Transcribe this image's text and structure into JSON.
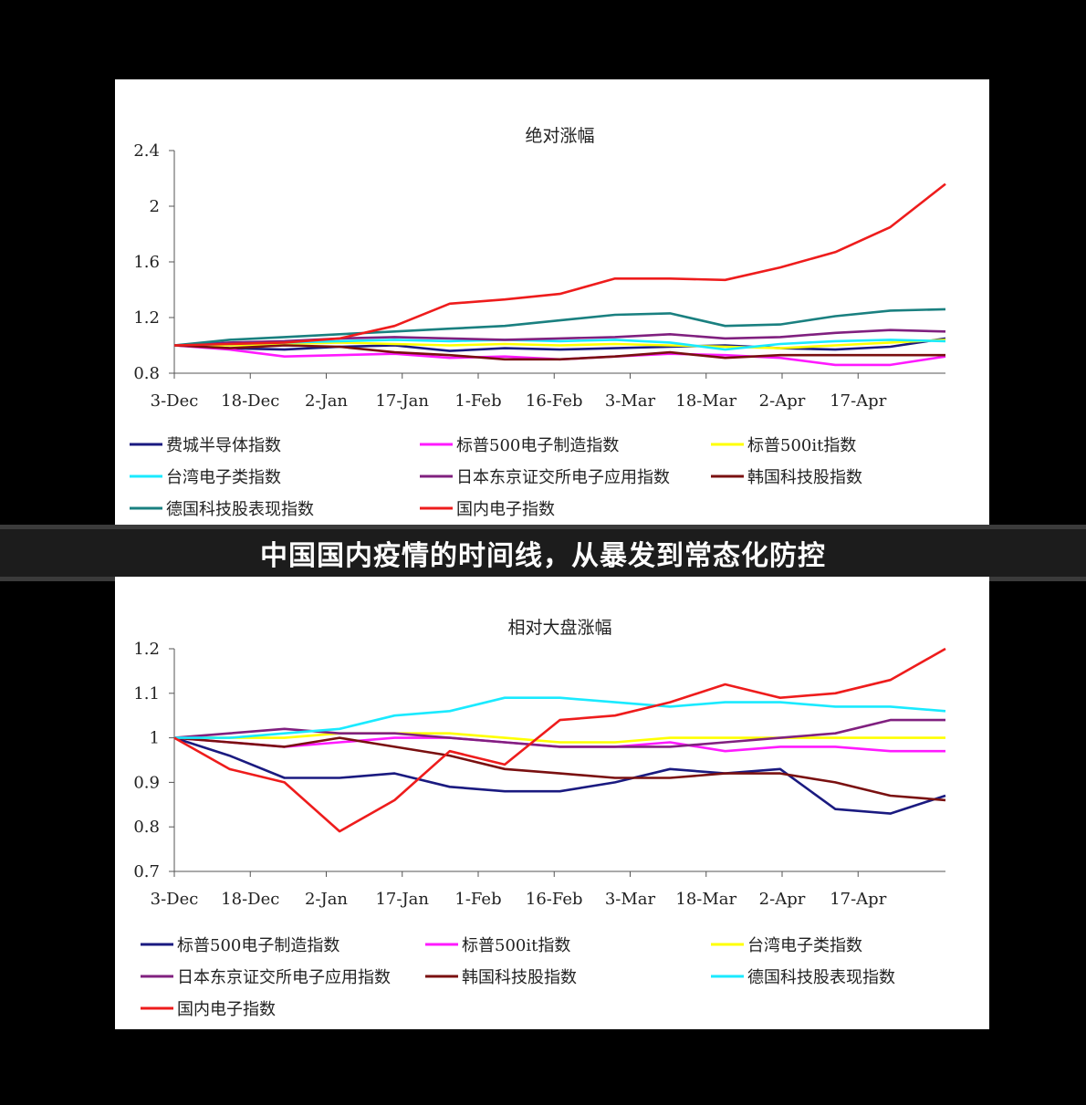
{
  "banner": {
    "title": "中国国内疫情的时间线，从暴发到常态化防控"
  },
  "chart_data": [
    {
      "type": "line",
      "title": "绝对涨幅",
      "ylim": [
        0.8,
        2.4
      ],
      "yticks": [
        "0.8",
        "1.2",
        "1.6",
        "2",
        "2.4"
      ],
      "categories": [
        "3-Dec",
        "18-Dec",
        "2-Jan",
        "17-Jan",
        "1-Feb",
        "16-Feb",
        "3-Mar",
        "18-Mar",
        "2-Apr",
        "17-Apr"
      ],
      "x": [
        0,
        10,
        20,
        30,
        40,
        50,
        60,
        70,
        80,
        90,
        100,
        110,
        120,
        130,
        140
      ],
      "series": [
        {
          "name": "费城半导体指数",
          "color": "#1a1a80",
          "values": [
            1.0,
            0.98,
            0.97,
            0.99,
            1.0,
            0.96,
            0.98,
            0.97,
            0.98,
            0.99,
            1.0,
            0.98,
            0.97,
            0.99,
            1.05
          ]
        },
        {
          "name": "标普500电子制造指数",
          "color": "#ff1aff",
          "values": [
            1.0,
            0.97,
            0.92,
            0.93,
            0.94,
            0.91,
            0.92,
            0.9,
            0.92,
            0.94,
            0.93,
            0.91,
            0.86,
            0.86,
            0.92
          ]
        },
        {
          "name": "标普500it指数",
          "color": "#ffff00",
          "values": [
            1.0,
            1.0,
            1.01,
            1.02,
            1.01,
            1.0,
            1.01,
            1.0,
            1.01,
            1.0,
            0.99,
            0.98,
            1.0,
            1.02,
            1.04
          ]
        },
        {
          "name": "台湾电子类指数",
          "color": "#1aeaff",
          "values": [
            1.0,
            1.01,
            1.02,
            1.03,
            1.04,
            1.03,
            1.04,
            1.03,
            1.04,
            1.02,
            0.97,
            1.01,
            1.03,
            1.04,
            1.03
          ]
        },
        {
          "name": "日本东京证交所电子应用指数",
          "color": "#80207f",
          "values": [
            1.0,
            1.02,
            1.03,
            1.05,
            1.06,
            1.05,
            1.04,
            1.05,
            1.06,
            1.08,
            1.05,
            1.06,
            1.09,
            1.11,
            1.1
          ]
        },
        {
          "name": "韩国科技股指数",
          "color": "#7a1010",
          "values": [
            1.0,
            0.98,
            1.0,
            0.99,
            0.95,
            0.93,
            0.9,
            0.9,
            0.92,
            0.95,
            0.91,
            0.93,
            0.93,
            0.93,
            0.93
          ]
        },
        {
          "name": "德国科技股表现指数",
          "color": "#1a8080",
          "values": [
            1.0,
            1.04,
            1.06,
            1.08,
            1.1,
            1.12,
            1.14,
            1.18,
            1.22,
            1.23,
            1.14,
            1.15,
            1.21,
            1.25,
            1.26
          ]
        },
        {
          "name": "国内电子指数",
          "color": "#ee1c1c",
          "values": [
            1.0,
            1.01,
            1.02,
            1.05,
            1.14,
            1.3,
            1.33,
            1.37,
            1.48,
            1.48,
            1.47,
            1.56,
            1.67,
            1.85,
            2.16
          ]
        }
      ]
    },
    {
      "type": "line",
      "title": "相对大盘涨幅",
      "ylim": [
        0.7,
        1.2
      ],
      "yticks": [
        "0.7",
        "0.8",
        "0.9",
        "1",
        "1.1",
        "1.2"
      ],
      "categories": [
        "3-Dec",
        "18-Dec",
        "2-Jan",
        "17-Jan",
        "1-Feb",
        "16-Feb",
        "3-Mar",
        "18-Mar",
        "2-Apr",
        "17-Apr"
      ],
      "x": [
        0,
        10,
        20,
        30,
        40,
        50,
        60,
        70,
        80,
        90,
        100,
        110,
        120,
        130,
        140
      ],
      "series": [
        {
          "name": "标普500电子制造指数",
          "color": "#1a1a80",
          "values": [
            1.0,
            0.96,
            0.91,
            0.91,
            0.92,
            0.89,
            0.88,
            0.88,
            0.9,
            0.93,
            0.92,
            0.93,
            0.84,
            0.83,
            0.87
          ]
        },
        {
          "name": "标普500it指数",
          "color": "#ff1aff",
          "values": [
            1.0,
            0.99,
            0.98,
            0.99,
            1.0,
            1.0,
            0.99,
            0.98,
            0.98,
            0.99,
            0.97,
            0.98,
            0.98,
            0.97,
            0.97
          ]
        },
        {
          "name": "台湾电子类指数",
          "color": "#ffff00",
          "values": [
            1.0,
            1.0,
            1.0,
            1.01,
            1.01,
            1.01,
            1.0,
            0.99,
            0.99,
            1.0,
            1.0,
            1.0,
            1.0,
            1.0,
            1.0
          ]
        },
        {
          "name": "日本东京证交所电子应用指数",
          "color": "#80207f",
          "values": [
            1.0,
            1.01,
            1.02,
            1.01,
            1.01,
            1.0,
            0.99,
            0.98,
            0.98,
            0.98,
            0.99,
            1.0,
            1.01,
            1.04,
            1.04
          ]
        },
        {
          "name": "韩国科技股指数",
          "color": "#7a1010",
          "values": [
            1.0,
            0.99,
            0.98,
            1.0,
            0.98,
            0.96,
            0.93,
            0.92,
            0.91,
            0.91,
            0.92,
            0.92,
            0.9,
            0.87,
            0.86
          ]
        },
        {
          "name": "德国科技股表现指数",
          "color": "#1aeaff",
          "values": [
            1.0,
            1.0,
            1.01,
            1.02,
            1.05,
            1.06,
            1.09,
            1.09,
            1.08,
            1.07,
            1.08,
            1.08,
            1.07,
            1.07,
            1.06
          ]
        },
        {
          "name": "国内电子指数",
          "color": "#ee1c1c",
          "values": [
            1.0,
            0.93,
            0.9,
            0.79,
            0.86,
            0.97,
            0.94,
            1.04,
            1.05,
            1.08,
            1.12,
            1.09,
            1.1,
            1.13,
            1.2
          ]
        }
      ]
    }
  ]
}
